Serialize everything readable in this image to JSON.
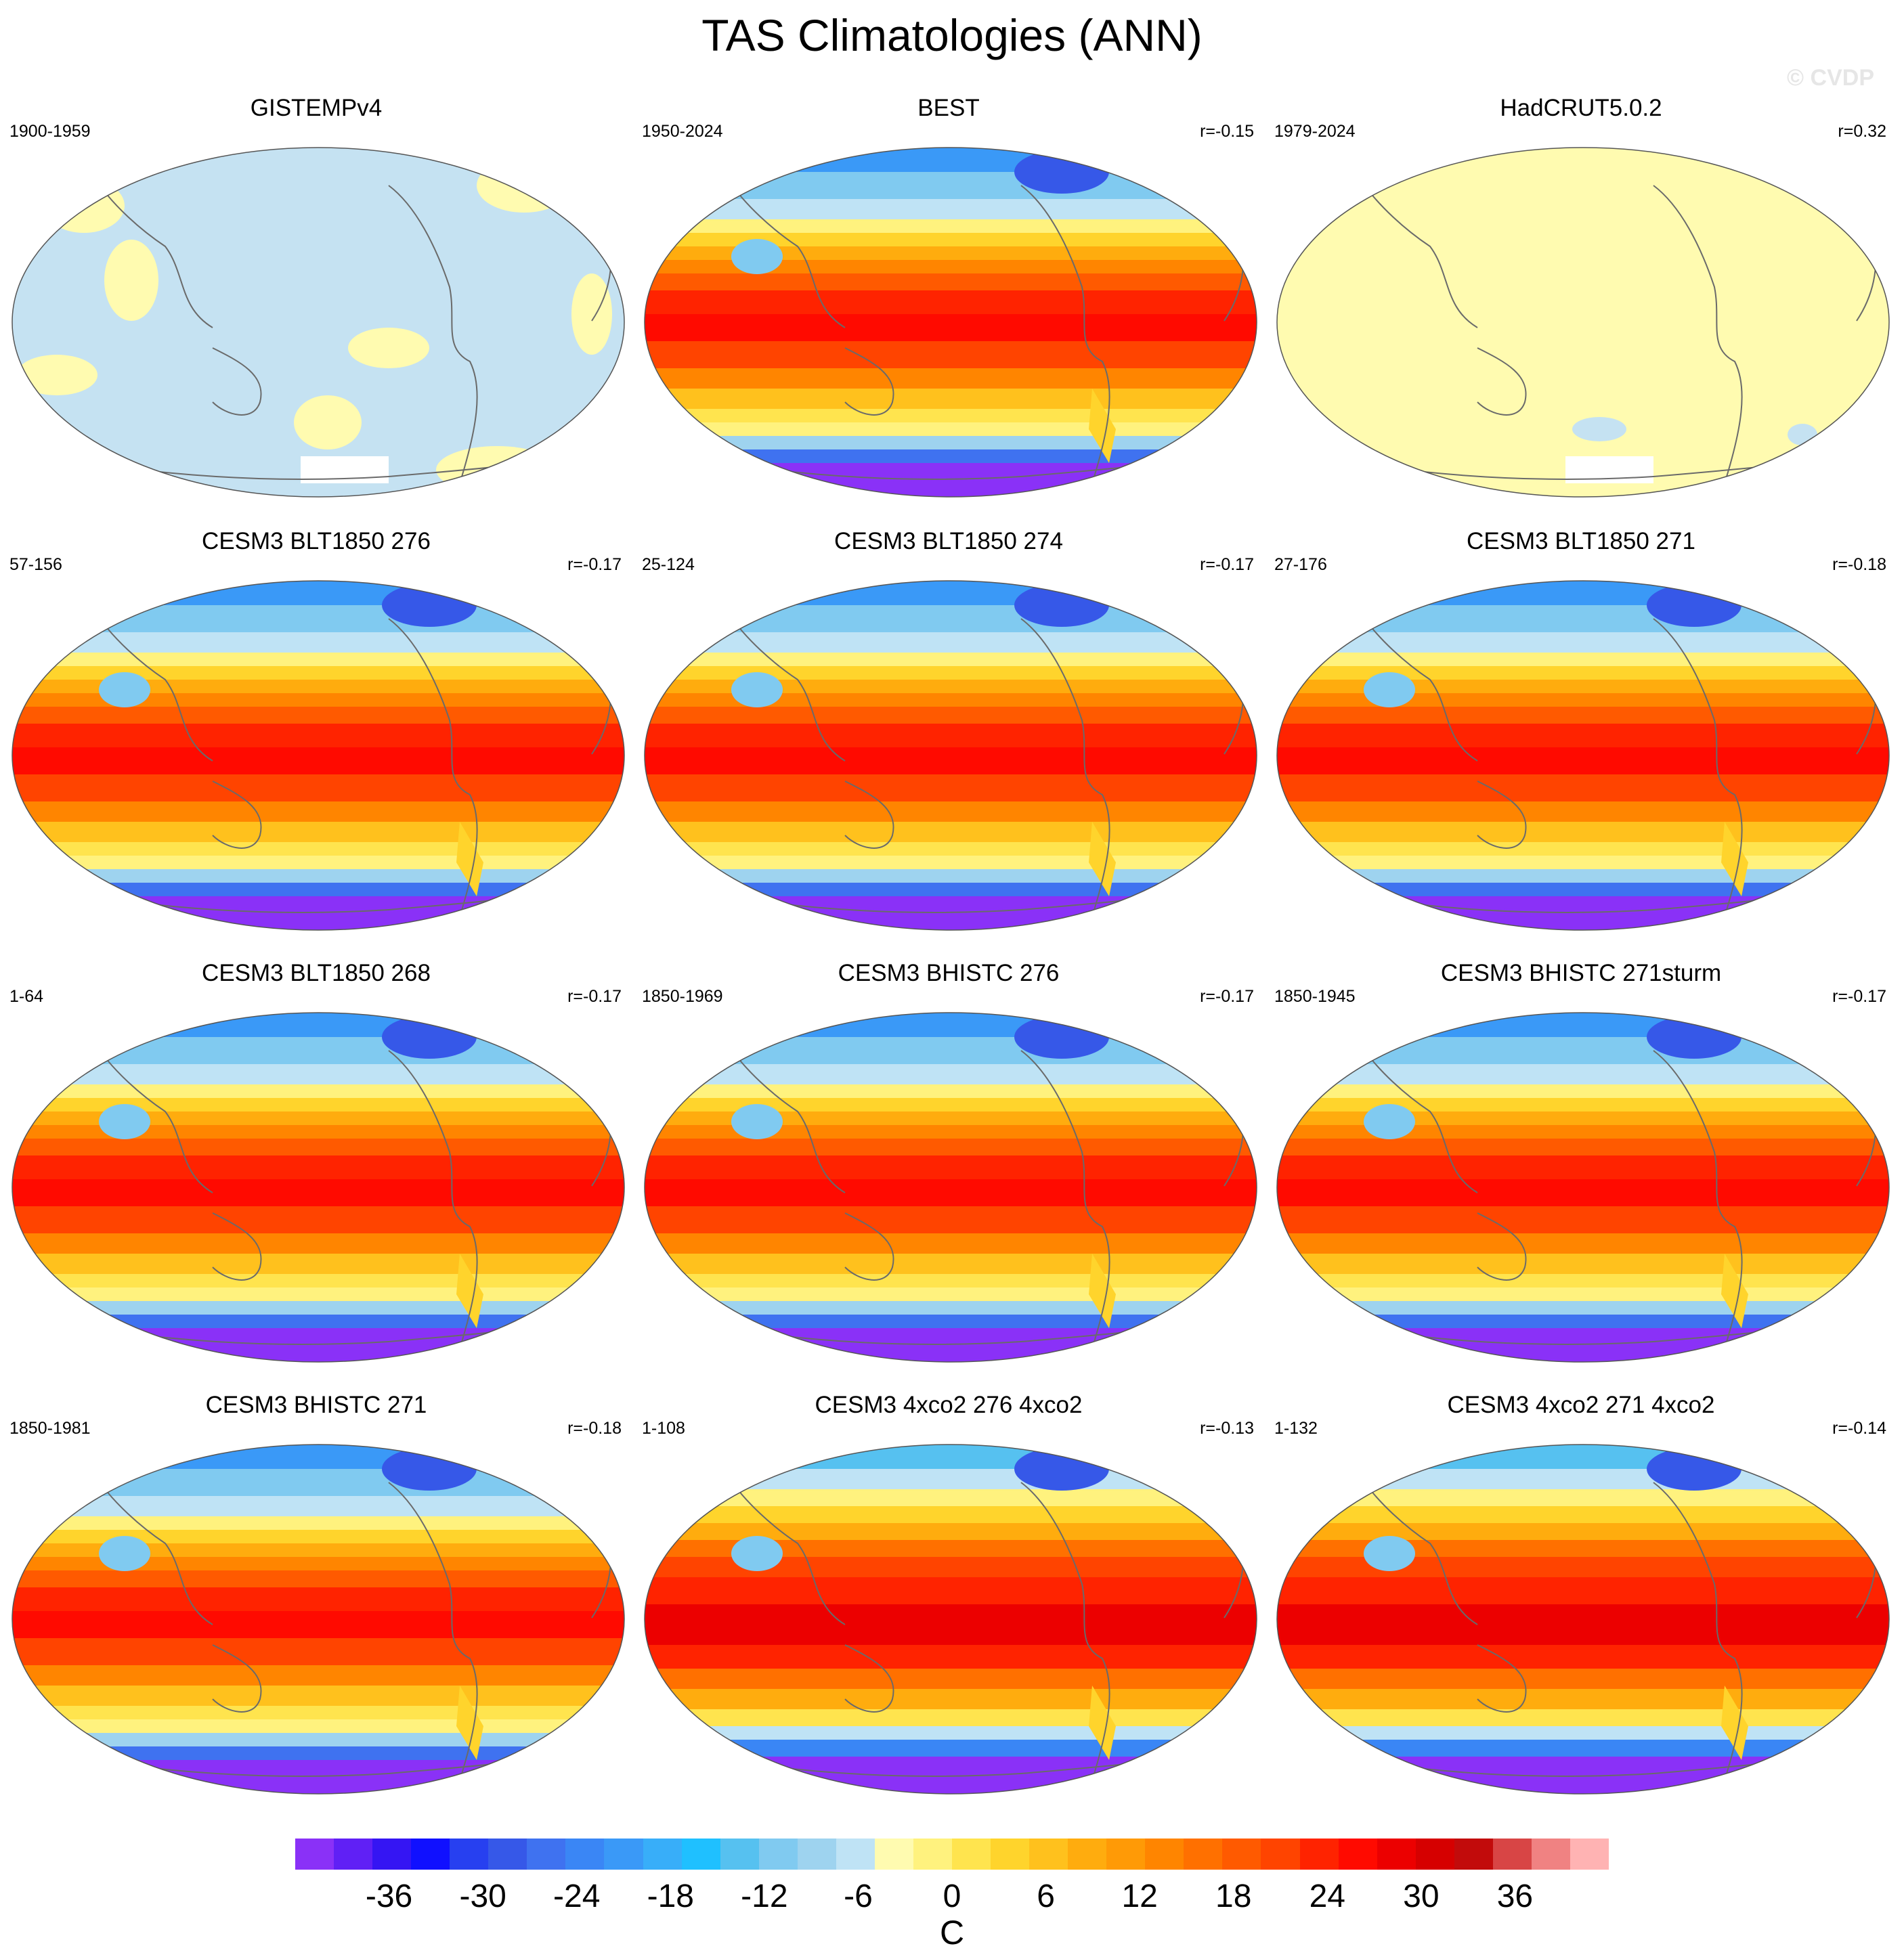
{
  "figure": {
    "title": "TAS Climatologies (ANN)",
    "watermark": "© CVDP",
    "units": "C"
  },
  "colorbar": {
    "min": -42,
    "max": 42,
    "step": 3,
    "tick_labels": [
      "-36",
      "-30",
      "-24",
      "-18",
      "-12",
      "-6",
      "0",
      "6",
      "12",
      "18",
      "24",
      "30",
      "36"
    ],
    "tick_values": [
      -36,
      -30,
      -24,
      -18,
      -12,
      -6,
      0,
      6,
      12,
      18,
      24,
      30,
      36
    ],
    "colors": [
      "#8a31f7",
      "#6020f5",
      "#3515f3",
      "#1010ff",
      "#2740f0",
      "#3658e8",
      "#3f72f0",
      "#3a86f5",
      "#3a99f7",
      "#38aef9",
      "#1fc0ff",
      "#56c1f0",
      "#80caf0",
      "#9ed3ef",
      "#bfe3f5",
      "#fffbb0",
      "#fff27e",
      "#ffe44e",
      "#ffd42c",
      "#ffc11d",
      "#ffac0e",
      "#ff9a06",
      "#ff8500",
      "#ff7000",
      "#ff5a00",
      "#ff4400",
      "#ff2300",
      "#ff0a00",
      "#ec0000",
      "#d60000",
      "#c20b0b",
      "#d84545",
      "#f08282",
      "#ffb3b3"
    ]
  },
  "panels": [
    {
      "title": "GISTEMPv4",
      "period": "1900-1959",
      "corr": "",
      "style": "anomaly_cool"
    },
    {
      "title": "BEST",
      "period": "1950-2024",
      "corr": "r=-0.15",
      "style": "climatology"
    },
    {
      "title": "HadCRUT5.0.2",
      "period": "1979-2024",
      "corr": "r=0.32",
      "style": "anomaly_warm"
    },
    {
      "title": "CESM3 BLT1850 276",
      "period": "57-156",
      "corr": "r=-0.17",
      "style": "climatology"
    },
    {
      "title": "CESM3 BLT1850 274",
      "period": "25-124",
      "corr": "r=-0.17",
      "style": "climatology"
    },
    {
      "title": "CESM3 BLT1850 271",
      "period": "27-176",
      "corr": "r=-0.18",
      "style": "climatology"
    },
    {
      "title": "CESM3 BLT1850 268",
      "period": "1-64",
      "corr": "r=-0.17",
      "style": "climatology"
    },
    {
      "title": "CESM3 BHISTC 276",
      "period": "1850-1969",
      "corr": "r=-0.17",
      "style": "climatology"
    },
    {
      "title": "CESM3 BHISTC 271sturm",
      "period": "1850-1945",
      "corr": "r=-0.17",
      "style": "climatology"
    },
    {
      "title": "CESM3 BHISTC 271",
      "period": "1850-1981",
      "corr": "r=-0.18",
      "style": "climatology"
    },
    {
      "title": "CESM3 4xco2 276 4xco2",
      "period": "1-108",
      "corr": "r=-0.13",
      "style": "climatology_warm"
    },
    {
      "title": "CESM3 4xco2 271 4xco2",
      "period": "1-132",
      "corr": "r=-0.14",
      "style": "climatology_warm"
    }
  ]
}
